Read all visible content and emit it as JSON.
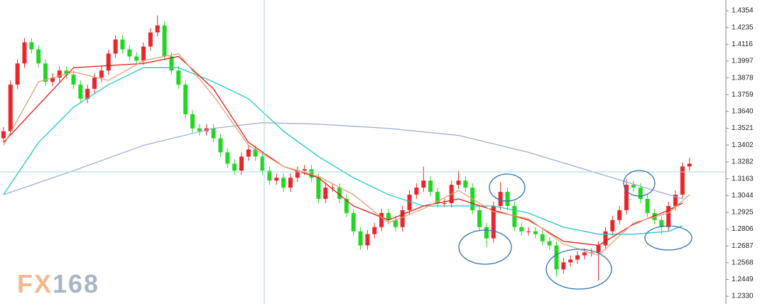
{
  "chart_data": {
    "type": "candlestick",
    "watermark": {
      "part1": "FX",
      "part2": "168"
    },
    "ylim": [
      1.2275,
      1.443
    ],
    "xlim": [
      -0.5,
      103
    ],
    "yticks": [
      1.4354,
      1.4235,
      1.4116,
      1.3997,
      1.3878,
      1.3759,
      {
        "value": 1.364,
        "label": "1.3640"
      },
      1.3521,
      1.3402,
      1.3282,
      1.3163,
      1.3044,
      1.2925,
      1.2806,
      1.2687,
      1.2568,
      1.2449,
      {
        "value": 1.233,
        "label": "1.2330"
      }
    ],
    "up_color": "#e8262b",
    "down_color": "#22d622",
    "x": [
      0,
      1,
      2,
      3,
      4,
      5,
      6,
      7,
      8,
      9,
      10,
      11,
      12,
      13,
      14,
      15,
      16,
      17,
      18,
      19,
      20,
      21,
      22,
      23,
      24,
      25,
      26,
      27,
      28,
      29,
      30,
      31,
      32,
      33,
      34,
      35,
      36,
      37,
      38,
      39,
      40,
      41,
      42,
      43,
      44,
      45,
      46,
      47,
      48,
      49,
      50,
      51,
      52,
      53,
      54,
      55,
      56,
      57,
      58,
      59,
      60,
      61,
      62,
      63,
      64,
      65,
      66,
      67,
      68,
      69,
      70,
      71,
      72,
      73,
      74,
      75,
      76,
      77,
      78,
      79,
      80,
      81,
      82,
      83,
      84,
      85,
      86,
      87,
      88,
      89,
      90,
      91,
      92,
      93,
      94,
      95,
      96,
      97,
      98
    ],
    "open": [
      1.345,
      1.35,
      1.383,
      1.398,
      1.413,
      1.408,
      1.398,
      1.385,
      1.388,
      1.393,
      1.39,
      1.383,
      1.373,
      1.38,
      1.388,
      1.393,
      1.405,
      1.415,
      1.408,
      1.403,
      1.4,
      1.41,
      1.42,
      1.425,
      1.403,
      1.393,
      1.383,
      1.362,
      1.352,
      1.35,
      1.352,
      1.345,
      1.335,
      1.327,
      1.322,
      1.332,
      1.337,
      1.332,
      1.322,
      1.315,
      1.317,
      1.31,
      1.317,
      1.322,
      1.323,
      1.317,
      1.302,
      1.31,
      1.31,
      1.302,
      1.292,
      1.279,
      1.269,
      1.277,
      1.282,
      1.292,
      1.287,
      1.282,
      1.294,
      1.305,
      1.31,
      1.315,
      1.307,
      1.299,
      1.299,
      1.312,
      1.315,
      1.31,
      1.294,
      1.282,
      1.274,
      1.297,
      1.307,
      1.297,
      1.282,
      1.279,
      1.279,
      1.277,
      1.272,
      1.269,
      1.252,
      1.257,
      1.259,
      1.262,
      1.264,
      1.264,
      1.269,
      1.279,
      1.287,
      1.294,
      1.312,
      1.31,
      1.302,
      1.292,
      1.287,
      1.282,
      1.297,
      1.305,
      1.325
    ],
    "high": [
      1.353,
      1.386,
      1.401,
      1.416,
      1.416,
      1.411,
      1.401,
      1.391,
      1.396,
      1.396,
      1.393,
      1.386,
      1.383,
      1.391,
      1.396,
      1.408,
      1.418,
      1.418,
      1.411,
      1.406,
      1.413,
      1.423,
      1.432,
      1.428,
      1.406,
      1.396,
      1.386,
      1.365,
      1.355,
      1.355,
      1.355,
      1.348,
      1.338,
      1.33,
      1.335,
      1.34,
      1.34,
      1.335,
      1.325,
      1.32,
      1.32,
      1.32,
      1.325,
      1.326,
      1.326,
      1.32,
      1.313,
      1.313,
      1.313,
      1.305,
      1.295,
      1.282,
      1.28,
      1.285,
      1.295,
      1.295,
      1.29,
      1.297,
      1.308,
      1.313,
      1.325,
      1.318,
      1.31,
      1.302,
      1.315,
      1.322,
      1.318,
      1.313,
      1.297,
      1.285,
      1.3,
      1.314,
      1.31,
      1.3,
      1.285,
      1.282,
      1.282,
      1.28,
      1.275,
      1.272,
      1.26,
      1.262,
      1.265,
      1.267,
      1.267,
      1.272,
      1.282,
      1.29,
      1.297,
      1.316,
      1.315,
      1.313,
      1.305,
      1.295,
      1.29,
      1.3,
      1.308,
      1.328,
      1.331
    ],
    "low": [
      1.342,
      1.347,
      1.38,
      1.395,
      1.405,
      1.395,
      1.382,
      1.382,
      1.385,
      1.387,
      1.38,
      1.37,
      1.37,
      1.377,
      1.385,
      1.39,
      1.402,
      1.405,
      1.4,
      1.397,
      1.397,
      1.407,
      1.417,
      1.4,
      1.39,
      1.38,
      1.359,
      1.349,
      1.347,
      1.347,
      1.342,
      1.332,
      1.324,
      1.319,
      1.319,
      1.329,
      1.329,
      1.319,
      1.312,
      1.312,
      1.307,
      1.307,
      1.314,
      1.319,
      1.314,
      1.299,
      1.299,
      1.307,
      1.299,
      1.289,
      1.276,
      1.266,
      1.266,
      1.274,
      1.279,
      1.284,
      1.279,
      1.279,
      1.291,
      1.302,
      1.307,
      1.304,
      1.296,
      1.296,
      1.296,
      1.309,
      1.307,
      1.291,
      1.279,
      1.268,
      1.271,
      1.294,
      1.294,
      1.279,
      1.276,
      1.276,
      1.274,
      1.269,
      1.266,
      1.247,
      1.249,
      1.254,
      1.256,
      1.259,
      1.261,
      1.244,
      1.266,
      1.276,
      1.284,
      1.291,
      1.307,
      1.299,
      1.289,
      1.284,
      1.277,
      1.279,
      1.294,
      1.302,
      1.322
    ],
    "close": [
      1.35,
      1.383,
      1.398,
      1.413,
      1.408,
      1.398,
      1.385,
      1.388,
      1.393,
      1.39,
      1.383,
      1.373,
      1.38,
      1.388,
      1.393,
      1.405,
      1.415,
      1.408,
      1.403,
      1.4,
      1.41,
      1.42,
      1.425,
      1.403,
      1.393,
      1.383,
      1.362,
      1.352,
      1.35,
      1.352,
      1.345,
      1.335,
      1.327,
      1.322,
      1.332,
      1.337,
      1.332,
      1.322,
      1.315,
      1.317,
      1.31,
      1.317,
      1.322,
      1.323,
      1.317,
      1.302,
      1.31,
      1.31,
      1.302,
      1.292,
      1.279,
      1.269,
      1.277,
      1.282,
      1.292,
      1.287,
      1.282,
      1.294,
      1.305,
      1.31,
      1.315,
      1.307,
      1.299,
      1.299,
      1.312,
      1.315,
      1.31,
      1.294,
      1.282,
      1.274,
      1.297,
      1.307,
      1.297,
      1.282,
      1.279,
      1.279,
      1.277,
      1.272,
      1.269,
      1.252,
      1.257,
      1.259,
      1.262,
      1.264,
      1.264,
      1.269,
      1.279,
      1.287,
      1.294,
      1.312,
      1.31,
      1.302,
      1.292,
      1.287,
      1.282,
      1.297,
      1.305,
      1.325,
      1.327
    ],
    "overlays": [
      {
        "color": "#9aaed6",
        "x": [
          0,
          10,
          20,
          30,
          37,
          45,
          55,
          65,
          75,
          85,
          95,
          97
        ],
        "values": [
          1.305,
          1.322,
          1.34,
          1.352,
          1.356,
          1.355,
          1.352,
          1.347,
          1.335,
          1.32,
          1.305,
          1.302
        ]
      },
      {
        "color": "#20c8c8",
        "x": [
          0,
          5,
          10,
          15,
          20,
          25,
          30,
          35,
          40,
          45,
          50,
          55,
          60,
          65,
          70,
          75,
          80,
          85,
          90,
          95,
          97
        ],
        "values": [
          1.305,
          1.342,
          1.367,
          1.383,
          1.395,
          1.395,
          1.385,
          1.373,
          1.35,
          1.332,
          1.317,
          1.305,
          1.297,
          1.297,
          1.297,
          1.292,
          1.282,
          1.277,
          1.277,
          1.279,
          1.283
        ]
      },
      {
        "color": "#e01818",
        "x": [
          0,
          10,
          20,
          25,
          30,
          35,
          40,
          45,
          50,
          55,
          60,
          65,
          70,
          75,
          80,
          85,
          90,
          95,
          97
        ],
        "values": [
          1.342,
          1.395,
          1.398,
          1.403,
          1.38,
          1.342,
          1.325,
          1.317,
          1.297,
          1.287,
          1.297,
          1.302,
          1.294,
          1.287,
          1.272,
          1.269,
          1.284,
          1.294,
          1.299
        ]
      },
      {
        "color": "#e0a070",
        "x": [
          0,
          5,
          10,
          15,
          20,
          25,
          30,
          35,
          40,
          45,
          50,
          55,
          60,
          65,
          70,
          75,
          80,
          85,
          90,
          95,
          98
        ],
        "values": [
          1.34,
          1.385,
          1.392,
          1.386,
          1.4,
          1.405,
          1.375,
          1.34,
          1.325,
          1.318,
          1.305,
          1.285,
          1.295,
          1.308,
          1.293,
          1.288,
          1.27,
          1.262,
          1.285,
          1.292,
          1.305
        ]
      }
    ]
  }
}
